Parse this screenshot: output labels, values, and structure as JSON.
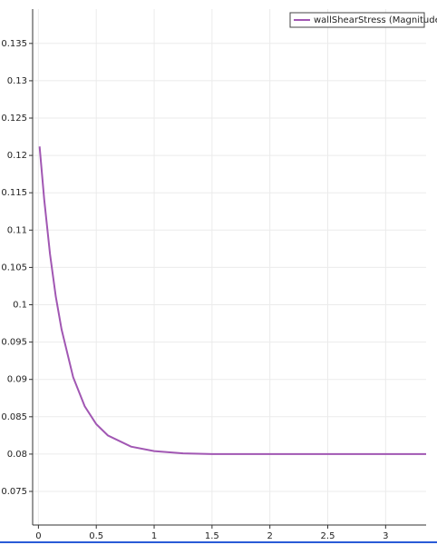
{
  "chart_data": {
    "type": "line",
    "x": [
      0.01,
      0.05,
      0.1,
      0.15,
      0.2,
      0.3,
      0.4,
      0.5,
      0.6,
      0.8,
      1,
      1.25,
      1.5,
      2,
      2.5,
      3,
      3.35
    ],
    "series": [
      {
        "name": "wallShearStress (Magnitude)",
        "color": "#a157b3",
        "values": [
          0.1212,
          0.1141,
          0.1068,
          0.1011,
          0.0967,
          0.0903,
          0.0864,
          0.084,
          0.0825,
          0.081,
          0.0804,
          0.0801,
          0.08,
          0.08,
          0.08,
          0.08,
          0.08
        ]
      }
    ],
    "xlim": [
      -0.05,
      3.35
    ],
    "ylim": [
      0.0705,
      0.1396
    ],
    "xticks": [
      0,
      0.5,
      1,
      1.5,
      2,
      2.5,
      3
    ],
    "yticks": [
      0.075,
      0.08,
      0.085,
      0.09,
      0.095,
      0.1,
      0.105,
      0.11,
      0.115,
      0.12,
      0.125,
      0.13,
      0.135
    ],
    "grid": true,
    "legend": "top-right"
  }
}
